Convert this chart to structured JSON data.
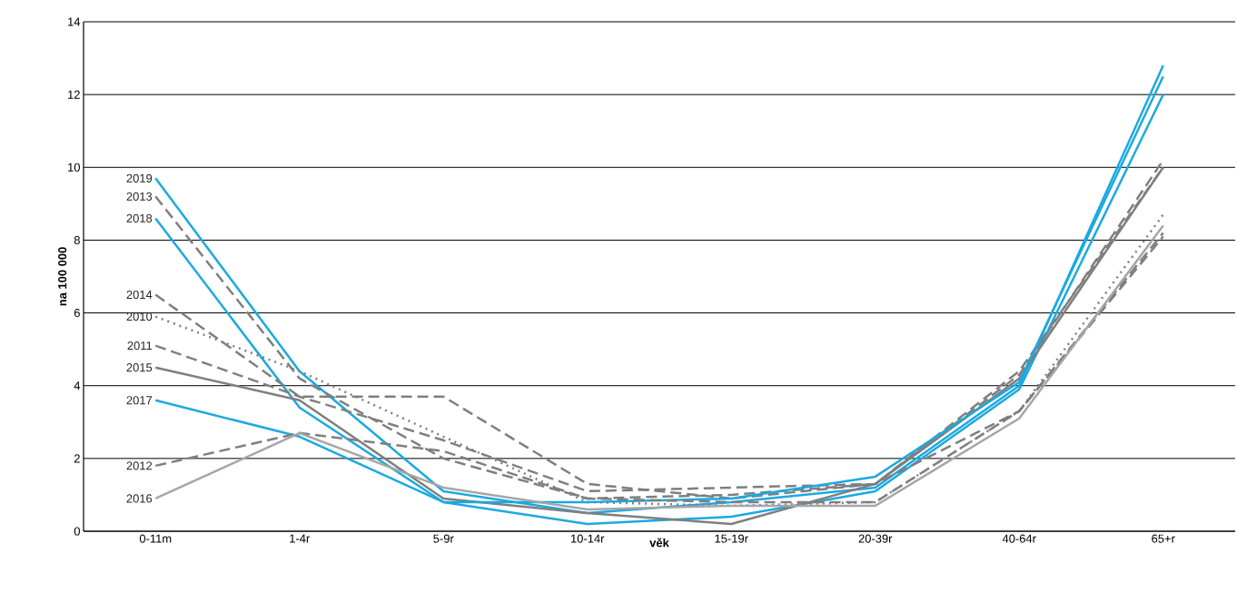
{
  "chart_data": {
    "type": "line",
    "xlabel": "věk",
    "ylabel": "na 100 000",
    "categories": [
      "0-11m",
      "1-4r",
      "5-9r",
      "10-14r",
      "15-19r",
      "20-39r",
      "40-64r",
      "65+r"
    ],
    "ylim": [
      0,
      14
    ],
    "yticks": [
      0,
      2,
      4,
      6,
      8,
      10,
      12,
      14
    ],
    "grid": "y",
    "marker": "none",
    "series": [
      {
        "name": "2019",
        "color": "#1ba9e1",
        "line_style": "solid",
        "values": [
          9.7,
          4.4,
          1.1,
          0.5,
          0.8,
          1.2,
          4.0,
          12.8
        ]
      },
      {
        "name": "2013",
        "color": "#7f7f7f",
        "line_style": "dashed",
        "values": [
          9.2,
          4.2,
          2.0,
          0.9,
          1.0,
          1.3,
          4.3,
          10.2
        ]
      },
      {
        "name": "2018",
        "color": "#1ba9e1",
        "line_style": "solid",
        "values": [
          8.6,
          3.4,
          0.8,
          0.2,
          0.4,
          1.1,
          3.9,
          12.0
        ]
      },
      {
        "name": "2014",
        "color": "#7f7f7f",
        "line_style": "dashed",
        "values": [
          6.5,
          3.7,
          3.7,
          1.3,
          0.9,
          1.3,
          4.4,
          10.0
        ]
      },
      {
        "name": "2010",
        "color": "#7f7f7f",
        "line_style": "dotted",
        "values": [
          5.9,
          4.4,
          2.6,
          0.8,
          0.7,
          0.8,
          3.3,
          8.7
        ]
      },
      {
        "name": "2011",
        "color": "#7f7f7f",
        "line_style": "dashed",
        "values": [
          5.1,
          3.7,
          2.5,
          1.1,
          1.2,
          1.3,
          3.3,
          8.1
        ]
      },
      {
        "name": "2015",
        "color": "#7f7f7f",
        "line_style": "solid",
        "values": [
          4.5,
          3.6,
          0.9,
          0.5,
          0.2,
          1.3,
          4.2,
          10.0
        ]
      },
      {
        "name": "2017",
        "color": "#1ba9e1",
        "line_style": "solid",
        "values": [
          3.6,
          2.6,
          0.8,
          0.8,
          0.9,
          1.5,
          4.1,
          12.5
        ]
      },
      {
        "name": "2012",
        "color": "#7f7f7f",
        "line_style": "dashed",
        "values": [
          1.8,
          2.7,
          2.2,
          0.9,
          0.8,
          0.8,
          3.3,
          8.2
        ]
      },
      {
        "name": "2016",
        "color": "#a6a6a6",
        "line_style": "solid",
        "values": [
          0.9,
          2.7,
          1.2,
          0.6,
          0.7,
          0.7,
          3.1,
          8.4
        ]
      }
    ]
  }
}
